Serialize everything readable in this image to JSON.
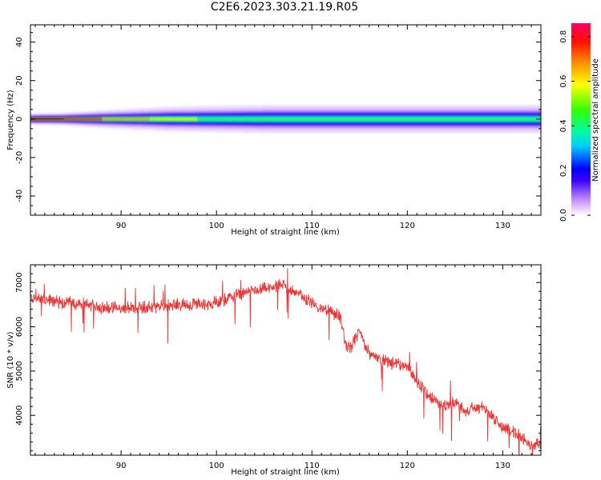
{
  "title": "C2E6.2023.303.21.19.R05",
  "chart_data": [
    {
      "type": "heatmap",
      "xlabel": "Height of straight line (km)",
      "ylabel": "Frequency (Hz)",
      "xlim": [
        80.5,
        134
      ],
      "ylim": [
        -50,
        49
      ],
      "xticks": [
        90,
        100,
        110,
        120,
        130
      ],
      "yticks": [
        -40,
        -20,
        0,
        20,
        40
      ],
      "colorbar": {
        "label": "Normalized spectral amplitude",
        "range": [
          0,
          0.86
        ],
        "ticks": [
          0.0,
          0.2,
          0.4,
          0.6,
          0.8
        ],
        "colormap": "rainbow"
      },
      "bands": [
        {
          "x": [
            80.5,
            84,
            88,
            95,
            105,
            115,
            125,
            134
          ],
          "half_width_hz": [
            0.6,
            0.7,
            1.0,
            1.4,
            1.6,
            1.6,
            1.6,
            1.6
          ],
          "level": 0.4
        },
        {
          "x": [
            80.5,
            85,
            92,
            105,
            115,
            125,
            134
          ],
          "half_width_hz": [
            0.3,
            0.3,
            0.3,
            0.35,
            0.35,
            0.3,
            0.3
          ],
          "level": 0.8
        }
      ]
    },
    {
      "type": "line",
      "xlabel": "Height of straight line (km)",
      "ylabel": "SNR (10 * v/v)",
      "xlim": [
        80.5,
        134
      ],
      "ylim": [
        3100,
        7400
      ],
      "xticks": [
        90,
        100,
        110,
        120,
        130
      ],
      "yticks": [
        4000,
        5000,
        6000,
        7000
      ],
      "color": "#ee3333",
      "series": [
        {
          "x": [
            80.5,
            82,
            84,
            86,
            88,
            90,
            92,
            94,
            96,
            98,
            100,
            102,
            104,
            106,
            107,
            108,
            109,
            110,
            111,
            112,
            113,
            113.5,
            114,
            114.5,
            115,
            115.5,
            116,
            117,
            118,
            119,
            120,
            121,
            122,
            123,
            124,
            125,
            126,
            127,
            128,
            129,
            130,
            131,
            132,
            133,
            134
          ],
          "y": [
            6650,
            6600,
            6550,
            6500,
            6450,
            6400,
            6450,
            6450,
            6500,
            6500,
            6550,
            6700,
            6800,
            6900,
            6950,
            6800,
            6700,
            6550,
            6400,
            6350,
            6200,
            5600,
            5500,
            5700,
            5900,
            5600,
            5400,
            5300,
            5200,
            5150,
            5100,
            4800,
            4500,
            4300,
            4200,
            4300,
            4100,
            4150,
            4200,
            3950,
            3700,
            3650,
            3500,
            3350,
            3350
          ]
        }
      ]
    }
  ]
}
